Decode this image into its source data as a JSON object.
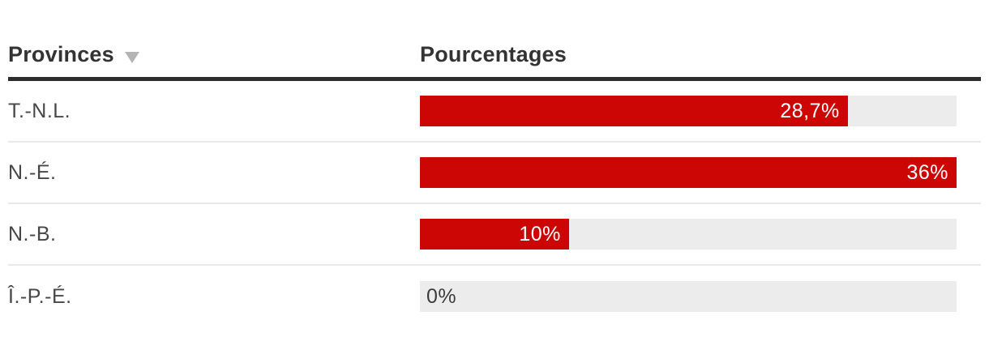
{
  "header": {
    "provinces_label": "Provinces",
    "pourcentages_label": "Pourcentages",
    "sort_icon": "triangle-down"
  },
  "colors": {
    "bar_red": "#cc0505",
    "track_gray": "#ececec",
    "header_rule": "#2d2d2d",
    "row_separator": "#e9e9e9",
    "header_text": "#333333",
    "label_text": "#474747",
    "value_on_bar": "#ffffff",
    "value_on_track": "#3c3c3c",
    "sort_arrow": "#b4b4b4"
  },
  "chart_data": {
    "type": "bar",
    "orientation": "horizontal",
    "title": "",
    "categories": [
      "T.-N.L.",
      "N.-É.",
      "N.-B.",
      "Î.-P.-É."
    ],
    "values": [
      28.7,
      36,
      10,
      0
    ],
    "value_labels": [
      "28,7%",
      "36%",
      "10%",
      "0%"
    ],
    "xlim": [
      0,
      36
    ],
    "grid": false,
    "legend": false,
    "column_headers": [
      "Provinces",
      "Pourcentages"
    ]
  }
}
